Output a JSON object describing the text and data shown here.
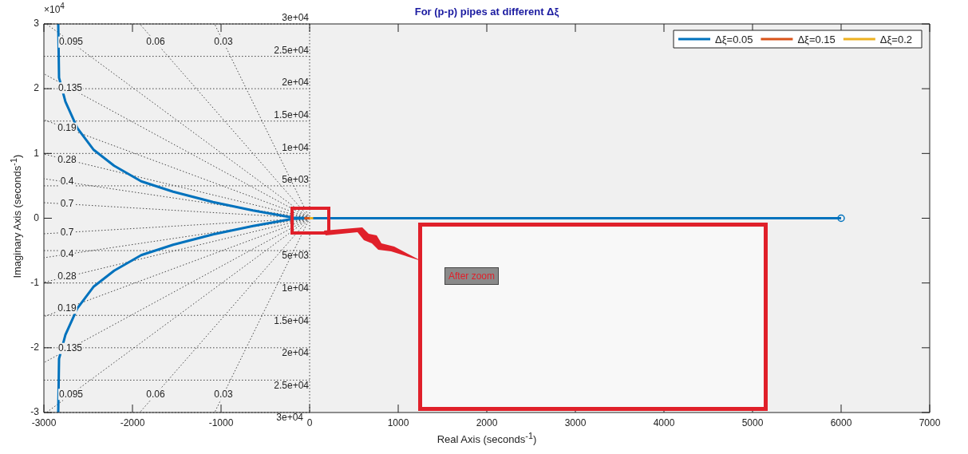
{
  "chart_data": {
    "type": "line",
    "title": "For (p-p) pipes at different Δξ",
    "xlabel": "Real Axis (seconds$^{-1}$)",
    "ylabel": "Imaginary Axis (seconds$^{-1}$)",
    "xlim": [
      -3000,
      7000
    ],
    "xticks": [
      -3000,
      -2000,
      -1000,
      0,
      1000,
      2000,
      3000,
      4000,
      5000,
      6000,
      7000
    ],
    "ylim": [
      -3,
      3
    ],
    "yticks": [
      -3,
      -2,
      -1,
      0,
      1,
      2,
      3
    ],
    "grid": false,
    "legend": "top right",
    "line_style": "solid",
    "marker": "none",
    "series": [
      {
        "name": "Δξ=0.05",
        "color": "#0072bd",
        "x": [
          -2838,
          -2829,
          -2757,
          -2622,
          -2441,
          -2207,
          -1901,
          -1541,
          -1090,
          -640,
          -189,
          0,
          -189,
          -640,
          -1090,
          -1541,
          -1901,
          -2207,
          -2441,
          -2622,
          -2757,
          -2829,
          -2838,
          null,
          0,
          6000
        ],
        "values": [
          3,
          2.17,
          1.8,
          1.39,
          1.06,
          0.81,
          0.57,
          0.41,
          0.25,
          0.12,
          0.01,
          0,
          -0.01,
          -0.12,
          -0.25,
          -0.41,
          -0.57,
          -0.81,
          -1.06,
          -1.39,
          -1.8,
          -2.17,
          -3,
          null,
          0,
          0
        ]
      },
      {
        "name": "Δξ=0.15",
        "color": "#d95319",
        "x": [
          -60,
          0
        ],
        "values": [
          0,
          0
        ]
      },
      {
        "name": "Δξ=0.2",
        "color": "#edb120",
        "x": [
          0,
          40
        ],
        "values": [
          0,
          0
        ]
      },
      {
        "type": "scatter",
        "color": "#0072bd",
        "marker": "circle",
        "x": [
          6000
        ],
        "values": [
          0
        ]
      },
      {
        "color": "#444444",
        "line_style": "dotted",
        "x": [
          0,
          -2971
        ],
        "values": [
          0,
          3
        ]
      },
      {
        "color": "#444444",
        "line_style": "dotted",
        "x": [
          0,
          -1918
        ],
        "values": [
          0,
          3
        ]
      },
      {
        "color": "#444444",
        "line_style": "dotted",
        "x": [
          0,
          -1073
        ],
        "values": [
          0,
          3
        ]
      },
      {
        "color": "#444444",
        "line_style": "dotted",
        "x": [
          0,
          -3000
        ],
        "values": [
          0,
          2.23
        ]
      },
      {
        "color": "#444444",
        "line_style": "dotted",
        "x": [
          0,
          -3000
        ],
        "values": [
          0,
          1.52
        ]
      },
      {
        "color": "#444444",
        "line_style": "dotted",
        "x": [
          0,
          -3000
        ],
        "values": [
          0,
          0.99
        ]
      },
      {
        "color": "#444444",
        "line_style": "dotted",
        "x": [
          0,
          -3000
        ],
        "values": [
          0,
          0.61
        ]
      },
      {
        "color": "#444444",
        "line_style": "dotted",
        "x": [
          0,
          -3000
        ],
        "values": [
          0,
          0.24
        ]
      },
      {
        "color": "#444444",
        "line_style": "dotted",
        "x": [
          0,
          -2971
        ],
        "values": [
          0,
          -3
        ]
      },
      {
        "color": "#444444",
        "line_style": "dotted",
        "x": [
          0,
          -1918
        ],
        "values": [
          0,
          -3
        ]
      },
      {
        "color": "#444444",
        "line_style": "dotted",
        "x": [
          0,
          -1073
        ],
        "values": [
          0,
          -3
        ]
      },
      {
        "color": "#444444",
        "line_style": "dotted",
        "x": [
          0,
          -3000
        ],
        "values": [
          0,
          -2.23
        ]
      },
      {
        "color": "#444444",
        "line_style": "dotted",
        "x": [
          0,
          -3000
        ],
        "values": [
          0,
          -1.52
        ]
      },
      {
        "color": "#444444",
        "line_style": "dotted",
        "x": [
          0,
          -3000
        ],
        "values": [
          0,
          -0.99
        ]
      },
      {
        "color": "#444444",
        "line_style": "dotted",
        "x": [
          0,
          -3000
        ],
        "values": [
          0,
          -0.61
        ]
      },
      {
        "color": "#444444",
        "line_style": "dotted",
        "x": [
          0,
          -3000
        ],
        "values": [
          0,
          -0.24
        ]
      }
    ],
    "ref_lines": [
      {
        "axis": "x",
        "value": 0,
        "color": "#444444",
        "line_style": "dotted"
      },
      {
        "axis": "y",
        "value": 3,
        "label": "3e+04",
        "color": "#444444",
        "line_style": "dotted"
      },
      {
        "axis": "y",
        "value": 2.5,
        "label": "2.5e+04",
        "color": "#444444",
        "line_style": "dotted"
      },
      {
        "axis": "y",
        "value": 2,
        "label": "2e+04",
        "color": "#444444",
        "line_style": "dotted"
      },
      {
        "axis": "y",
        "value": 1.5,
        "label": "1.5e+04",
        "color": "#444444",
        "line_style": "dotted"
      },
      {
        "axis": "y",
        "value": 1,
        "label": "1e+04",
        "color": "#444444",
        "line_style": "dotted"
      },
      {
        "axis": "y",
        "value": 0.5,
        "label": "5e+03",
        "color": "#444444",
        "line_style": "dotted"
      },
      {
        "axis": "y",
        "value": -0.5,
        "label": "5e+03",
        "color": "#444444",
        "line_style": "dotted"
      },
      {
        "axis": "y",
        "value": -1,
        "label": "1e+04",
        "color": "#444444",
        "line_style": "dotted"
      },
      {
        "axis": "y",
        "value": -1.5,
        "label": "1.5e+04",
        "color": "#444444",
        "line_style": "dotted"
      },
      {
        "axis": "y",
        "value": -2,
        "label": "2e+04",
        "color": "#444444",
        "line_style": "dotted"
      },
      {
        "axis": "y",
        "value": -2.5,
        "label": "2.5e+04",
        "color": "#444444",
        "line_style": "dotted"
      },
      {
        "axis": "y",
        "value": -3,
        "label": "3e+04",
        "color": "#444444",
        "line_style": "dotted"
      }
    ],
    "annotations": [
      "×10$^{4}$",
      "After zoom",
      {
        "text": "0.095",
        "x": -2694,
        "y": 2.72
      },
      {
        "text": "0.06",
        "x": -1739,
        "y": 2.72
      },
      {
        "text": "0.03",
        "x": -973,
        "y": 2.72
      },
      {
        "text": "0.135",
        "x": -2703,
        "y": 2.01
      },
      {
        "text": "0.19",
        "x": -2739,
        "y": 1.39
      },
      {
        "text": "0.28",
        "x": -2739,
        "y": 0.9
      },
      {
        "text": "0.4",
        "x": -2739,
        "y": 0.56
      },
      {
        "text": "0.7",
        "x": -2739,
        "y": 0.22
      },
      {
        "text": "0.7",
        "x": -2739,
        "y": -0.22
      },
      {
        "text": "0.4",
        "x": -2739,
        "y": -0.56
      },
      {
        "text": "0.28",
        "x": -2739,
        "y": -0.9
      },
      {
        "text": "0.19",
        "x": -2739,
        "y": -1.39
      },
      {
        "text": "0.135",
        "x": -2703,
        "y": -2.01
      },
      {
        "text": "0.095",
        "x": -2694,
        "y": -2.72
      },
      {
        "text": "0.06",
        "x": -1739,
        "y": -2.72
      },
      {
        "text": "0.03",
        "x": -973,
        "y": -2.72
      }
    ]
  }
}
